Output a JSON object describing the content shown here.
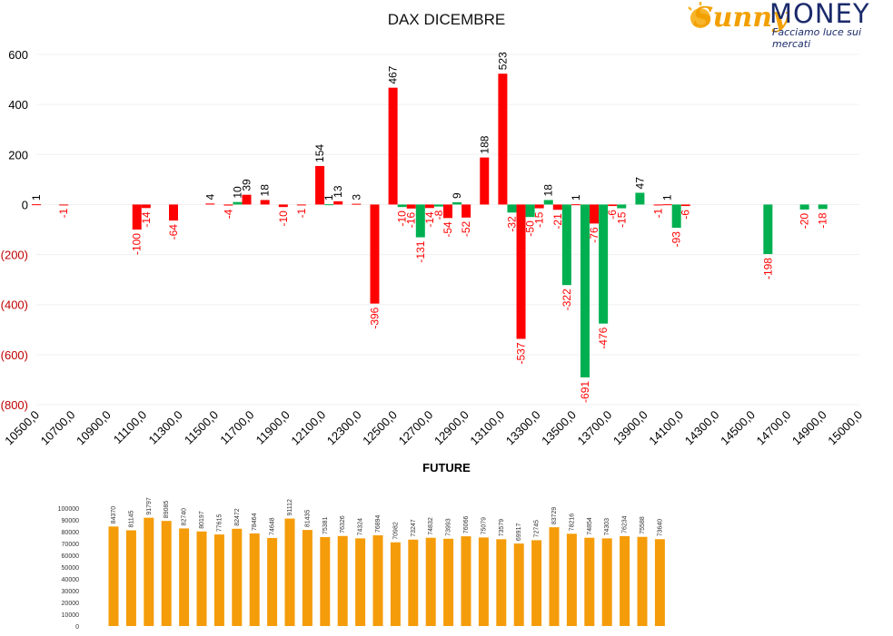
{
  "logo": {
    "brand_script": "Sunny",
    "brand_word": "MONEY",
    "tagline": "Facciamo luce sui mercati",
    "colors": {
      "script": "#f2a000",
      "word": "#1b2a6b",
      "tagline": "#1b2a6b"
    }
  },
  "colors": {
    "positive": "#ff0000",
    "negative": "#00b050",
    "future_bar": "#f59c0a",
    "negative_label": "#ff0000",
    "positive_label": "#000000",
    "negative_tick": "#c00000"
  },
  "chart_data": [
    {
      "type": "bar",
      "title": "DAX DICEMBRE",
      "ylim": [
        -800,
        600
      ],
      "yticks": [
        600,
        400,
        200,
        0,
        -200,
        -400,
        -600,
        -800
      ],
      "ytick_labels": [
        "600",
        "400",
        "200",
        "0",
        "(200)",
        "(400)",
        "(600)",
        "(800)"
      ],
      "xlim": [
        10500,
        15000
      ],
      "xtick_labels": [
        "10500,0",
        "10700,0",
        "10900,0",
        "11100,0",
        "11300,0",
        "11500,0",
        "11700,0",
        "11900,0",
        "12100,0",
        "12300,0",
        "12500,0",
        "12700,0",
        "12900,0",
        "13100,0",
        "13300,0",
        "13500,0",
        "13700,0",
        "13900,0",
        "14100,0",
        "14300,0",
        "14500,0",
        "14700,0",
        "14900,0",
        "15000,0"
      ],
      "grid": true,
      "points": [
        {
          "x": 10500,
          "v": 1,
          "c": "positive"
        },
        {
          "x": 10650,
          "v": -1,
          "c": "positive"
        },
        {
          "x": 11050,
          "v": -100,
          "c": "positive"
        },
        {
          "x": 11100,
          "v": -14,
          "c": "positive"
        },
        {
          "x": 11250,
          "v": -64,
          "c": "positive"
        },
        {
          "x": 11450,
          "v": 4,
          "c": "positive"
        },
        {
          "x": 11550,
          "v": -4,
          "c": "positive"
        },
        {
          "x": 11600,
          "v": 10,
          "c": "negative"
        },
        {
          "x": 11650,
          "v": 39,
          "c": "positive"
        },
        {
          "x": 11750,
          "v": 18,
          "c": "positive"
        },
        {
          "x": 11850,
          "v": -10,
          "c": "positive"
        },
        {
          "x": 11950,
          "v": -1,
          "c": "positive"
        },
        {
          "x": 12050,
          "v": 154,
          "c": "positive"
        },
        {
          "x": 12100,
          "v": 1,
          "c": "negative"
        },
        {
          "x": 12150,
          "v": 13,
          "c": "positive"
        },
        {
          "x": 12250,
          "v": 3,
          "c": "positive"
        },
        {
          "x": 12350,
          "v": -396,
          "c": "positive"
        },
        {
          "x": 12450,
          "v": 467,
          "c": "positive"
        },
        {
          "x": 12500,
          "v": -10,
          "c": "negative"
        },
        {
          "x": 12550,
          "v": -16,
          "c": "positive"
        },
        {
          "x": 12600,
          "v": -131,
          "c": "negative"
        },
        {
          "x": 12650,
          "v": -14,
          "c": "positive"
        },
        {
          "x": 12700,
          "v": -8,
          "c": "negative"
        },
        {
          "x": 12750,
          "v": -54,
          "c": "positive"
        },
        {
          "x": 12800,
          "v": 9,
          "c": "negative"
        },
        {
          "x": 12850,
          "v": -52,
          "c": "positive"
        },
        {
          "x": 12950,
          "v": 188,
          "c": "positive"
        },
        {
          "x": 13050,
          "v": 523,
          "c": "positive"
        },
        {
          "x": 13100,
          "v": -32,
          "c": "negative"
        },
        {
          "x": 13150,
          "v": -537,
          "c": "positive"
        },
        {
          "x": 13200,
          "v": -50,
          "c": "negative"
        },
        {
          "x": 13250,
          "v": -15,
          "c": "positive"
        },
        {
          "x": 13300,
          "v": 18,
          "c": "negative"
        },
        {
          "x": 13350,
          "v": -21,
          "c": "positive"
        },
        {
          "x": 13400,
          "v": -322,
          "c": "negative"
        },
        {
          "x": 13450,
          "v": 1,
          "c": "positive"
        },
        {
          "x": 13500,
          "v": -691,
          "c": "negative"
        },
        {
          "x": 13550,
          "v": -76,
          "c": "positive"
        },
        {
          "x": 13600,
          "v": -476,
          "c": "negative"
        },
        {
          "x": 13650,
          "v": -6,
          "c": "positive"
        },
        {
          "x": 13700,
          "v": -15,
          "c": "negative"
        },
        {
          "x": 13800,
          "v": 47,
          "c": "negative"
        },
        {
          "x": 13900,
          "v": -1,
          "c": "positive"
        },
        {
          "x": 13950,
          "v": 1,
          "c": "positive"
        },
        {
          "x": 14000,
          "v": -93,
          "c": "negative"
        },
        {
          "x": 14050,
          "v": -6,
          "c": "positive"
        },
        {
          "x": 14500,
          "v": -198,
          "c": "negative"
        },
        {
          "x": 14700,
          "v": -20,
          "c": "negative"
        },
        {
          "x": 14800,
          "v": -18,
          "c": "negative"
        }
      ]
    },
    {
      "type": "bar",
      "title": "FUTURE",
      "ylim": [
        0,
        100000
      ],
      "yticks": [
        100000,
        90000,
        80000,
        70000,
        60000,
        50000,
        40000,
        30000,
        20000,
        10000,
        0
      ],
      "values": [
        84370,
        81145,
        91797,
        89085,
        82740,
        80197,
        77615,
        82472,
        78464,
        74648,
        91112,
        81435,
        75381,
        76326,
        74324,
        76894,
        70982,
        73247,
        74832,
        73993,
        76066,
        75079,
        73579,
        69917,
        72745,
        83729,
        78216,
        74854,
        74303,
        76234,
        75588,
        73640
      ]
    }
  ]
}
